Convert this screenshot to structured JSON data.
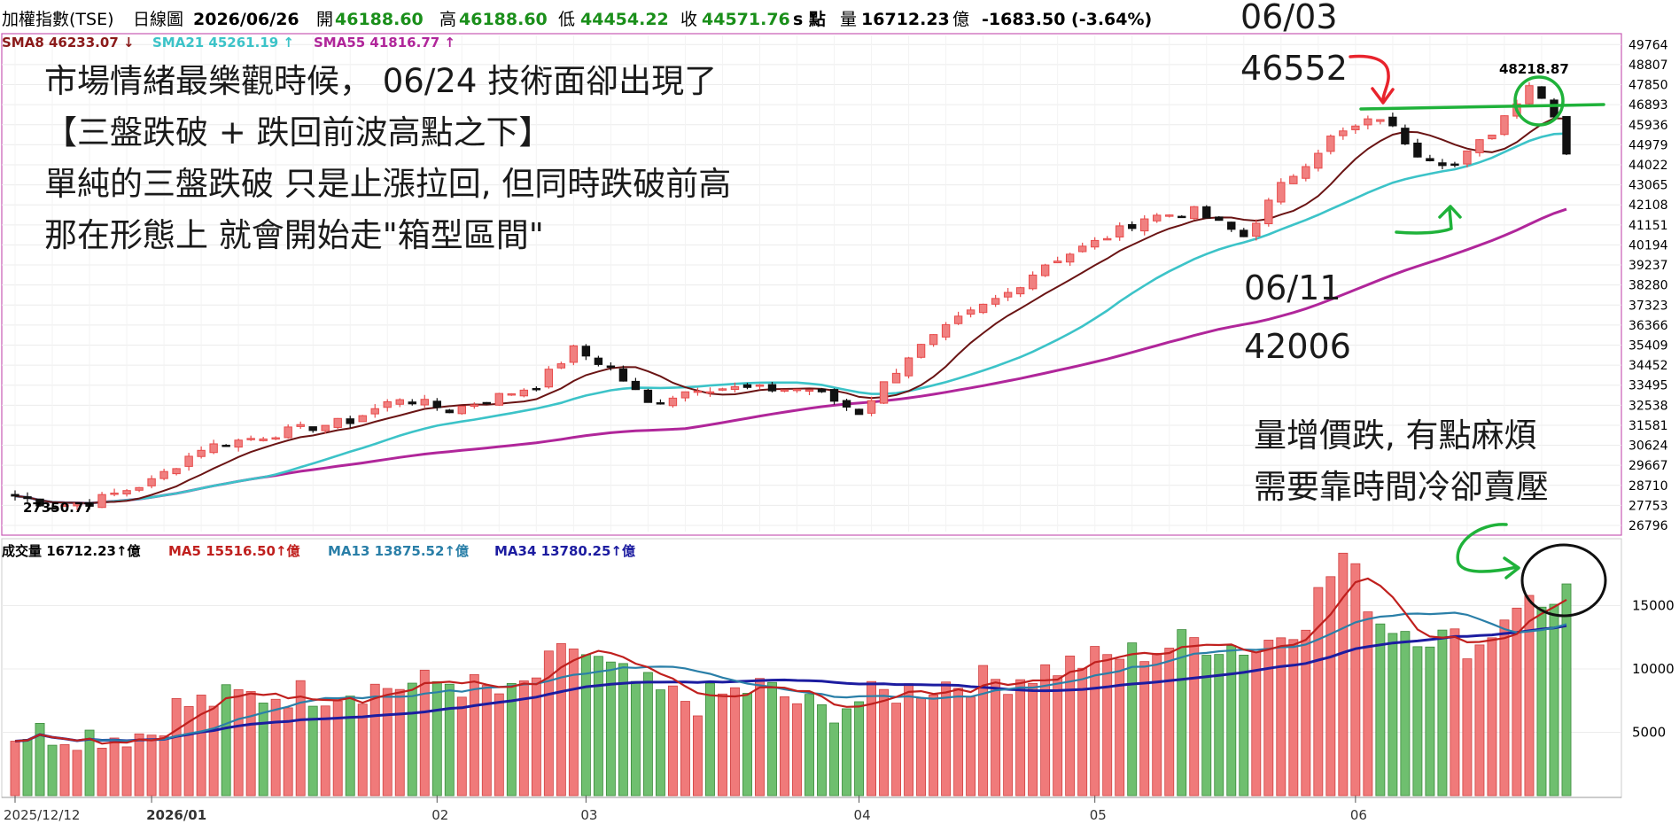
{
  "header": {
    "title": "加權指數(TSE)",
    "period": "日線圖",
    "date": "2026/06/26",
    "open_label": "開",
    "open": "46188.60",
    "high_label": "高",
    "high": "46188.60",
    "low_label": "低",
    "low": "44454.22",
    "close_label": "收",
    "close": "44571.76",
    "s_label": "s 點",
    "vol_label": "量",
    "vol": "16712.23",
    "vol_unit": "億",
    "change": "-1683.50 (-3.64%)"
  },
  "legend_price": [
    {
      "label": "SMA8",
      "value": "46233.07",
      "dir": "down",
      "color": "#8b1a1a"
    },
    {
      "label": "SMA21",
      "value": "45261.19",
      "dir": "up",
      "color": "#3cc3c8"
    },
    {
      "label": "SMA55",
      "value": "41816.77",
      "dir": "up",
      "color": "#b0269a"
    }
  ],
  "legend_volume": [
    {
      "label": "成交量",
      "value": "16712.23",
      "unit": "億",
      "color": "#000000"
    },
    {
      "label": "MA5",
      "value": "15516.50",
      "unit": "億",
      "color": "#c0201e"
    },
    {
      "label": "MA13",
      "value": "13875.52",
      "unit": "億",
      "color": "#2a7fa8"
    },
    {
      "label": "MA34",
      "value": "13780.25",
      "unit": "億",
      "color": "#1c1ca0"
    }
  ],
  "annotations": {
    "main_line1": "市場情緒最樂觀時候， 06/24 技術面卻出現了",
    "main_line2": "【三盤跌破 + 跌回前波高點之下】",
    "main_line3": "單純的三盤跌破 只是止漲拉回, 但同時跌破前高",
    "main_line4": "那在形態上 就會開始走\"箱型區間\"",
    "peak_date": "06/03",
    "peak_value": "46552",
    "low_date": "06/11",
    "low_value": "42006",
    "vol_line1": "量增價跌, 有點麻煩",
    "vol_line2": "需要靠時間冷卻賣壓",
    "high_label": "48218.87",
    "low_label": "27350.77"
  },
  "colors": {
    "up": "#e84a4a",
    "up_fill": "#f08080",
    "down": "#111111",
    "vol_up": "#f07a7a",
    "vol_down": "#6fbf6f",
    "ann_red": "#e8232c",
    "ann_green": "#1fb23a"
  },
  "chart_data": {
    "type": "candlestick",
    "price_axis": {
      "ticks": [
        26796,
        27753,
        28710,
        29667,
        30624,
        31581,
        32538,
        33495,
        34452,
        35409,
        36366,
        37323,
        38280,
        39237,
        40194,
        41151,
        42108,
        43065,
        44022,
        44979,
        45936,
        46893,
        47850,
        48807,
        49764
      ],
      "range": [
        26500,
        50200
      ]
    },
    "volume_axis": {
      "ticks": [
        5000,
        10000,
        15000
      ],
      "range": [
        0,
        20000
      ]
    },
    "x_labels": [
      "2025/12/12",
      "2026/01",
      "02",
      "03",
      "04",
      "05",
      "06"
    ],
    "x_label_positions": [
      0,
      11,
      34,
      46,
      68,
      87,
      108
    ],
    "series_ma": [
      "SMA8",
      "SMA21",
      "SMA55"
    ],
    "volume_ma": [
      "MA5",
      "MA13",
      "MA34"
    ],
    "n_bars": 126,
    "candles_keypoints": [
      [
        0,
        28200
      ],
      [
        3,
        27750
      ],
      [
        6,
        27900
      ],
      [
        11,
        28900
      ],
      [
        15,
        30500
      ],
      [
        22,
        31300
      ],
      [
        27,
        31800
      ],
      [
        31,
        32900
      ],
      [
        35,
        32300
      ],
      [
        38,
        32800
      ],
      [
        42,
        33500
      ],
      [
        45,
        35200
      ],
      [
        48,
        34300
      ],
      [
        51,
        32600
      ],
      [
        55,
        33400
      ],
      [
        60,
        33300
      ],
      [
        64,
        33300
      ],
      [
        68,
        32200
      ],
      [
        72,
        34900
      ],
      [
        76,
        36600
      ],
      [
        80,
        37900
      ],
      [
        83,
        39300
      ],
      [
        87,
        40300
      ],
      [
        91,
        41500
      ],
      [
        95,
        41800
      ],
      [
        99,
        40600
      ],
      [
        102,
        43000
      ],
      [
        106,
        45300
      ],
      [
        110,
        46300
      ],
      [
        113,
        44600
      ],
      [
        116,
        44000
      ],
      [
        119,
        45600
      ],
      [
        122,
        47900
      ],
      [
        124,
        46500
      ],
      [
        125,
        44600
      ]
    ],
    "volume_keypoints": [
      [
        0,
        5000
      ],
      [
        8,
        4800
      ],
      [
        11,
        5000
      ],
      [
        13,
        7000
      ],
      [
        18,
        7800
      ],
      [
        25,
        8200
      ],
      [
        31,
        8700
      ],
      [
        35,
        9000
      ],
      [
        40,
        7800
      ],
      [
        45,
        11800
      ],
      [
        48,
        9800
      ],
      [
        52,
        8000
      ],
      [
        55,
        7400
      ],
      [
        60,
        8600
      ],
      [
        65,
        6600
      ],
      [
        68,
        7500
      ],
      [
        71,
        8200
      ],
      [
        75,
        8900
      ],
      [
        80,
        9200
      ],
      [
        85,
        10400
      ],
      [
        90,
        11200
      ],
      [
        95,
        12300
      ],
      [
        100,
        11600
      ],
      [
        104,
        14200
      ],
      [
        107,
        19000
      ],
      [
        110,
        13800
      ],
      [
        114,
        12700
      ],
      [
        118,
        11800
      ],
      [
        121,
        15500
      ],
      [
        123,
        14900
      ],
      [
        125,
        16712
      ]
    ]
  }
}
